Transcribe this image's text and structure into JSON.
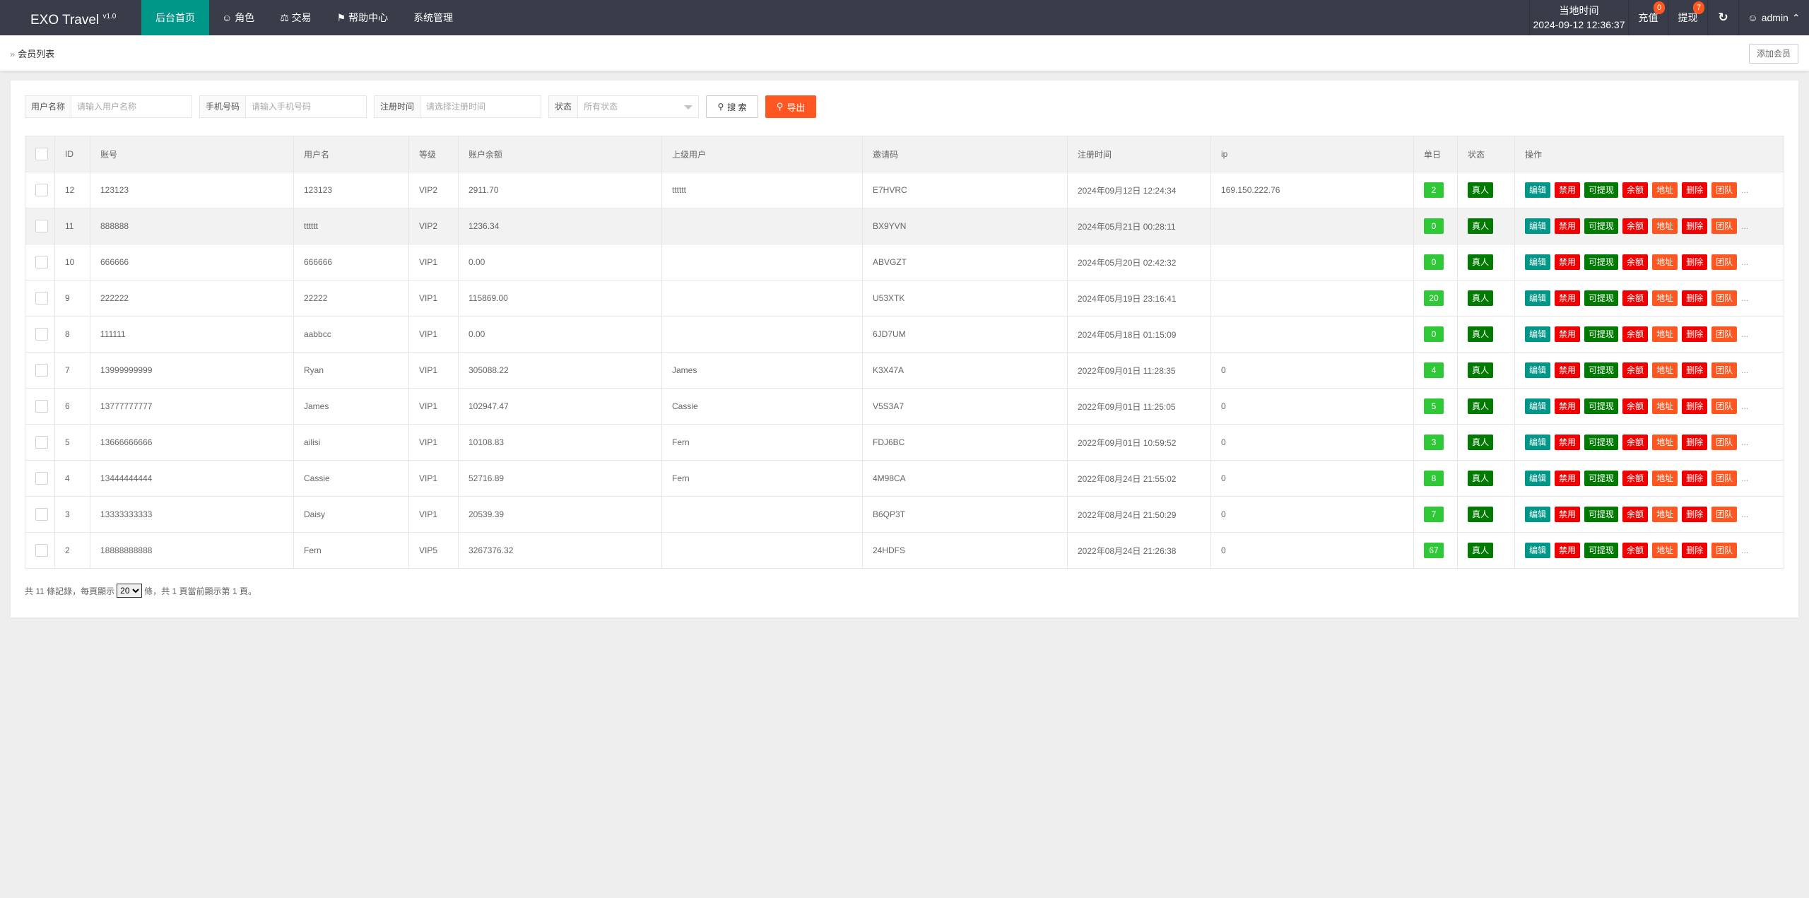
{
  "header": {
    "logo": "EXO Travel",
    "version": "v1.0",
    "nav": [
      {
        "label": "后台首页",
        "icon": ""
      },
      {
        "label": "角色",
        "icon": "user-icon"
      },
      {
        "label": "交易",
        "icon": "scale-icon"
      },
      {
        "label": "帮助中心",
        "icon": "flag-icon"
      },
      {
        "label": "系统管理",
        "icon": ""
      }
    ],
    "clock_label": "当地时间",
    "clock_value": "2024-09-12 12:36:37",
    "recharge": "充值",
    "recharge_badge": "0",
    "withdraw": "提现",
    "withdraw_badge": "7",
    "refresh_icon": "refresh-icon",
    "user": "admin"
  },
  "breadcrumb": {
    "current": "会员列表",
    "add_button": "添加会员"
  },
  "filters": {
    "username_label": "用户名称",
    "username_placeholder": "请输入用户名称",
    "phone_label": "手机号码",
    "phone_placeholder": "请输入手机号码",
    "regtime_label": "注册时间",
    "regtime_placeholder": "请选择注册时间",
    "status_label": "状态",
    "status_value": "所有状态",
    "search": "搜 索",
    "export": "导出"
  },
  "table": {
    "columns": [
      "ID",
      "账号",
      "用户名",
      "等级",
      "账户余额",
      "上级用户",
      "邀请码",
      "注册时间",
      "ip",
      "单日",
      "状态",
      "操作"
    ],
    "actions": [
      {
        "label": "编辑",
        "color": "#009688"
      },
      {
        "label": "禁用",
        "color": "#f00000"
      },
      {
        "label": "可提现",
        "color": "#007a00"
      },
      {
        "label": "余额",
        "color": "#f00000"
      },
      {
        "label": "地址",
        "color": "#ff5722"
      },
      {
        "label": "删除",
        "color": "#f00000"
      },
      {
        "label": "团队",
        "color": "#ff5722"
      }
    ],
    "more": "...",
    "rows": [
      {
        "id": "12",
        "account": "123123",
        "username": "123123",
        "level": "VIP2",
        "balance": "2911.70",
        "parent": "tttttt",
        "invite": "E7HVRC",
        "regtime": "2024年09月12日 12:24:34",
        "ip": "169.150.222.76",
        "daily": "2",
        "status": "真人"
      },
      {
        "id": "11",
        "account": "888888",
        "username": "tttttt",
        "level": "VIP2",
        "balance": "1236.34",
        "parent": "",
        "invite": "BX9YVN",
        "regtime": "2024年05月21日 00:28:11",
        "ip": "",
        "daily": "0",
        "status": "真人"
      },
      {
        "id": "10",
        "account": "666666",
        "username": "666666",
        "level": "VIP1",
        "balance": "0.00",
        "parent": "",
        "invite": "ABVGZT",
        "regtime": "2024年05月20日 02:42:32",
        "ip": "",
        "daily": "0",
        "status": "真人"
      },
      {
        "id": "9",
        "account": "222222",
        "username": "22222",
        "level": "VIP1",
        "balance": "115869.00",
        "parent": "",
        "invite": "U53XTK",
        "regtime": "2024年05月19日 23:16:41",
        "ip": "",
        "daily": "20",
        "status": "真人"
      },
      {
        "id": "8",
        "account": "111111",
        "username": "aabbcc",
        "level": "VIP1",
        "balance": "0.00",
        "parent": "",
        "invite": "6JD7UM",
        "regtime": "2024年05月18日 01:15:09",
        "ip": "",
        "daily": "0",
        "status": "真人"
      },
      {
        "id": "7",
        "account": "13999999999",
        "username": "Ryan",
        "level": "VIP1",
        "balance": "305088.22",
        "parent": "James",
        "invite": "K3X47A",
        "regtime": "2022年09月01日 11:28:35",
        "ip": "0",
        "daily": "4",
        "status": "真人"
      },
      {
        "id": "6",
        "account": "13777777777",
        "username": "James",
        "level": "VIP1",
        "balance": "102947.47",
        "parent": "Cassie",
        "invite": "V5S3A7",
        "regtime": "2022年09月01日 11:25:05",
        "ip": "0",
        "daily": "5",
        "status": "真人"
      },
      {
        "id": "5",
        "account": "13666666666",
        "username": "ailisi",
        "level": "VIP1",
        "balance": "10108.83",
        "parent": "Fern",
        "invite": "FDJ6BC",
        "regtime": "2022年09月01日 10:59:52",
        "ip": "0",
        "daily": "3",
        "status": "真人"
      },
      {
        "id": "4",
        "account": "13444444444",
        "username": "Cassie",
        "level": "VIP1",
        "balance": "52716.89",
        "parent": "Fern",
        "invite": "4M98CA",
        "regtime": "2022年08月24日 21:55:02",
        "ip": "0",
        "daily": "8",
        "status": "真人"
      },
      {
        "id": "3",
        "account": "13333333333",
        "username": "Daisy",
        "level": "VIP1",
        "balance": "20539.39",
        "parent": "",
        "invite": "B6QP3T",
        "regtime": "2022年08月24日 21:50:29",
        "ip": "0",
        "daily": "7",
        "status": "真人"
      },
      {
        "id": "2",
        "account": "18888888888",
        "username": "Fern",
        "level": "VIP5",
        "balance": "3267376.32",
        "parent": "",
        "invite": "24HDFS",
        "regtime": "2022年08月24日 21:26:38",
        "ip": "0",
        "daily": "67",
        "status": "真人"
      }
    ]
  },
  "pager": {
    "prefix": "共 11 條記錄，每頁顯示",
    "page_size": "20",
    "suffix": "條，共 1 頁當前顯示第 1 頁。"
  }
}
